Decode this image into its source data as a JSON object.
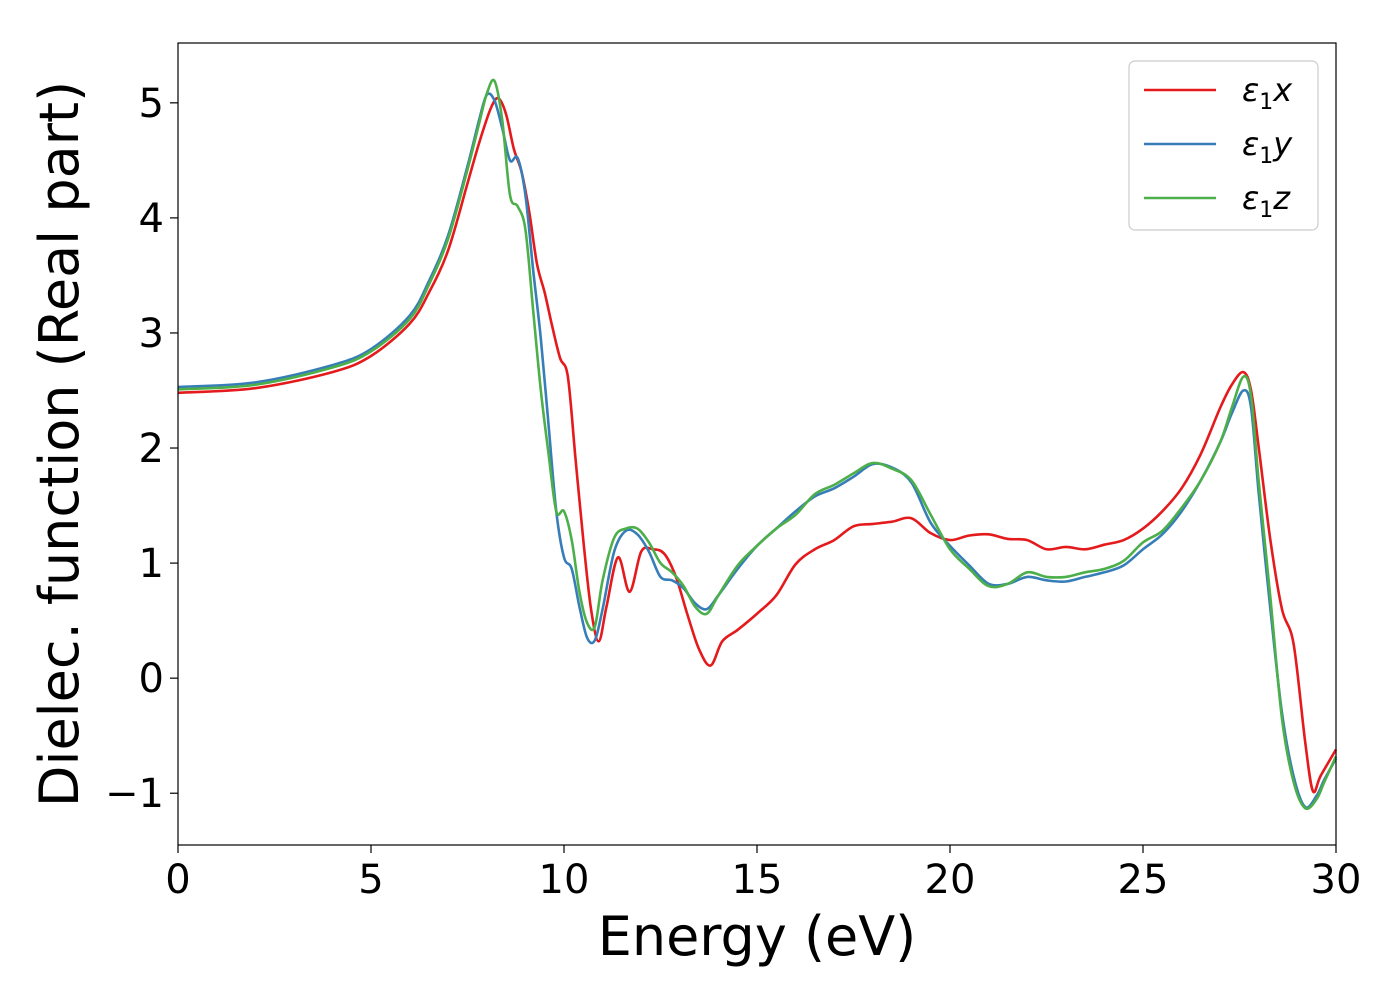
{
  "chart_data": {
    "type": "line",
    "xlabel": "Energy (eV)",
    "ylabel": "Dielec. function (Real part)",
    "xlim": [
      0,
      30
    ],
    "ylim": [
      -1.45,
      5.52
    ],
    "xticks": [
      0,
      5,
      10,
      15,
      20,
      25,
      30
    ],
    "yticks": [
      -1,
      0,
      1,
      2,
      3,
      4,
      5
    ],
    "ytick_labels": [
      "−1",
      "0",
      "1",
      "2",
      "3",
      "4",
      "5"
    ],
    "grid": false,
    "legend_position": "top-right",
    "series": [
      {
        "name": "ε1x",
        "color": "#e41a1c",
        "x": [
          0,
          2,
          4,
          5,
          6,
          6.5,
          7,
          7.5,
          7.8,
          8.1,
          8.3,
          8.5,
          8.7,
          8.9,
          9.1,
          9.3,
          9.5,
          9.7,
          9.9,
          10.1,
          10.3,
          10.5,
          10.7,
          10.9,
          11.1,
          11.4,
          11.7,
          12.0,
          12.3,
          12.6,
          12.9,
          13.2,
          13.5,
          13.8,
          14.1,
          14.5,
          15.0,
          15.5,
          16.0,
          16.5,
          17.0,
          17.5,
          18.0,
          18.5,
          19.0,
          19.5,
          20.0,
          20.5,
          21.0,
          21.5,
          22.0,
          22.5,
          23.0,
          23.5,
          24.0,
          24.5,
          25.0,
          25.5,
          26.0,
          26.5,
          27.0,
          27.3,
          27.6,
          27.8,
          28.0,
          28.3,
          28.6,
          28.9,
          29.2,
          29.4,
          29.6,
          30.0
        ],
        "y": [
          2.48,
          2.52,
          2.66,
          2.8,
          3.08,
          3.35,
          3.72,
          4.3,
          4.65,
          4.95,
          5.04,
          4.9,
          4.6,
          4.4,
          4.05,
          3.6,
          3.35,
          3.05,
          2.78,
          2.62,
          1.9,
          1.2,
          0.6,
          0.32,
          0.62,
          1.05,
          0.75,
          1.1,
          1.12,
          1.08,
          0.88,
          0.55,
          0.25,
          0.11,
          0.32,
          0.42,
          0.56,
          0.72,
          0.99,
          1.12,
          1.2,
          1.32,
          1.34,
          1.36,
          1.39,
          1.26,
          1.2,
          1.24,
          1.25,
          1.21,
          1.2,
          1.12,
          1.14,
          1.12,
          1.16,
          1.2,
          1.3,
          1.45,
          1.65,
          1.95,
          2.35,
          2.55,
          2.66,
          2.5,
          2.0,
          1.2,
          0.6,
          0.3,
          -0.55,
          -0.98,
          -0.85,
          -0.62
        ]
      },
      {
        "name": "ε1y",
        "color": "#377eb8",
        "x": [
          0,
          2,
          4,
          5,
          6,
          6.5,
          7,
          7.5,
          7.8,
          8.0,
          8.2,
          8.4,
          8.6,
          8.8,
          9.0,
          9.2,
          9.4,
          9.6,
          9.8,
          10.0,
          10.2,
          10.4,
          10.6,
          10.8,
          11.0,
          11.3,
          11.6,
          11.9,
          12.2,
          12.5,
          12.8,
          13.1,
          13.4,
          13.7,
          14.0,
          14.5,
          15.0,
          15.5,
          16.0,
          16.5,
          17.0,
          17.5,
          18.0,
          18.5,
          19.0,
          19.5,
          20.0,
          20.5,
          21.0,
          21.5,
          22.0,
          22.5,
          23.0,
          23.5,
          24.0,
          24.5,
          25.0,
          25.5,
          26.0,
          26.5,
          27.0,
          27.3,
          27.6,
          27.8,
          28.0,
          28.3,
          28.6,
          28.9,
          29.2,
          29.5,
          29.7,
          30.0
        ],
        "y": [
          2.53,
          2.57,
          2.72,
          2.86,
          3.15,
          3.45,
          3.85,
          4.45,
          4.85,
          5.07,
          5.02,
          4.78,
          4.5,
          4.52,
          4.2,
          3.55,
          2.95,
          2.2,
          1.45,
          1.05,
          0.95,
          0.62,
          0.35,
          0.33,
          0.6,
          1.1,
          1.28,
          1.25,
          1.1,
          0.88,
          0.85,
          0.78,
          0.65,
          0.6,
          0.72,
          0.95,
          1.15,
          1.3,
          1.45,
          1.58,
          1.65,
          1.75,
          1.86,
          1.83,
          1.7,
          1.35,
          1.15,
          0.98,
          0.82,
          0.82,
          0.88,
          0.85,
          0.84,
          0.88,
          0.92,
          0.98,
          1.12,
          1.25,
          1.45,
          1.72,
          2.05,
          2.3,
          2.5,
          2.35,
          1.6,
          0.6,
          -0.3,
          -0.85,
          -1.12,
          -1.02,
          -0.88,
          -0.7
        ]
      },
      {
        "name": "ε1z",
        "color": "#4daf4a",
        "x": [
          0,
          2,
          4,
          5,
          6,
          6.5,
          7,
          7.5,
          7.8,
          8.0,
          8.2,
          8.4,
          8.6,
          8.8,
          9.0,
          9.2,
          9.4,
          9.6,
          9.8,
          10.0,
          10.2,
          10.4,
          10.6,
          10.8,
          11.0,
          11.3,
          11.6,
          11.9,
          12.2,
          12.5,
          12.8,
          13.1,
          13.4,
          13.7,
          14.0,
          14.5,
          15.0,
          15.5,
          16.0,
          16.5,
          17.0,
          17.5,
          18.0,
          18.5,
          19.0,
          19.5,
          20.0,
          20.5,
          21.0,
          21.5,
          22.0,
          22.5,
          23.0,
          23.5,
          24.0,
          24.5,
          25.0,
          25.5,
          26.0,
          26.5,
          27.0,
          27.3,
          27.6,
          27.8,
          28.0,
          28.3,
          28.6,
          28.9,
          29.2,
          29.5,
          29.7,
          30.0
        ],
        "y": [
          2.51,
          2.55,
          2.7,
          2.84,
          3.12,
          3.42,
          3.82,
          4.42,
          4.82,
          5.08,
          5.19,
          4.85,
          4.2,
          4.1,
          3.9,
          3.2,
          2.5,
          1.95,
          1.45,
          1.45,
          1.2,
          0.75,
          0.48,
          0.45,
          0.85,
          1.22,
          1.3,
          1.3,
          1.18,
          1.0,
          0.92,
          0.8,
          0.62,
          0.56,
          0.72,
          0.98,
          1.15,
          1.3,
          1.42,
          1.6,
          1.68,
          1.78,
          1.87,
          1.82,
          1.72,
          1.42,
          1.12,
          0.95,
          0.8,
          0.82,
          0.92,
          0.88,
          0.88,
          0.92,
          0.95,
          1.02,
          1.18,
          1.28,
          1.48,
          1.72,
          2.05,
          2.35,
          2.62,
          2.45,
          1.7,
          0.7,
          -0.35,
          -0.9,
          -1.13,
          -1.05,
          -0.9,
          -0.68
        ]
      }
    ]
  }
}
